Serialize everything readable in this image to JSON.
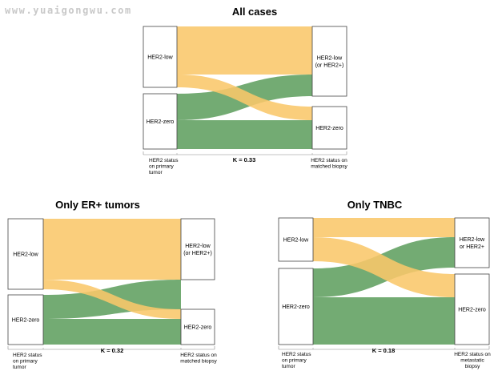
{
  "watermark": "www.yuaigongwu.com",
  "colors": {
    "low_flow": "#f9c76a",
    "zero_flow": "#5a9c5a",
    "node_fill": "#ffffff",
    "node_stroke": "#444444",
    "axis": "#888888"
  },
  "panels": [
    {
      "id": "all",
      "title": "All cases",
      "kappa": "K = 0.33",
      "left_nodes": [
        "HER2-low",
        "HER2-zero"
      ],
      "right_nodes": [
        "HER2-low\n(or HER2+)",
        "HER2-zero"
      ],
      "left_axis_label": "HER2 status\non primary\ntumor",
      "right_axis_label": "HER2 status on\nmatched biopsy"
    },
    {
      "id": "er",
      "title": "Only ER+ tumors",
      "kappa": "K = 0.32",
      "left_nodes": [
        "HER2-low",
        "HER2-zero"
      ],
      "right_nodes": [
        "HER2-low\n(or HER2+)",
        "HER2-zero"
      ],
      "left_axis_label": "HER2 status\non primary\ntumor",
      "right_axis_label": "HER2 status on\nmatched biopsy"
    },
    {
      "id": "tnbc",
      "title": "Only TNBC",
      "kappa": "K = 0.18",
      "left_nodes": [
        "HER2-low",
        "HER2-zero"
      ],
      "right_nodes": [
        "HER2-low\nor HER2+",
        "HER2-zero"
      ],
      "left_axis_label": "HER2 status\non primary\ntumor",
      "right_axis_label": "HER2 status on\nmetastatic\nbiopsy"
    }
  ]
}
